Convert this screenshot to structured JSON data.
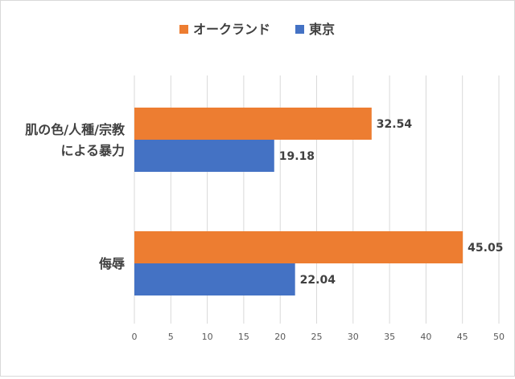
{
  "chart_data": {
    "type": "bar",
    "orientation": "horizontal",
    "categories": [
      [
        "肌の色/人種/宗教",
        "による暴力"
      ],
      [
        "侮辱"
      ]
    ],
    "series": [
      {
        "name": "オークランド",
        "values": [
          32.54,
          45.05
        ],
        "color": "#ed7d31"
      },
      {
        "name": "東京",
        "values": [
          19.18,
          22.04
        ],
        "color": "#4472c4"
      }
    ],
    "xlim": [
      0,
      50
    ],
    "xticks": [
      0,
      5,
      10,
      15,
      20,
      25,
      30,
      35,
      40,
      45,
      50
    ],
    "grid": true,
    "legend_position": "top-center",
    "data_labels": true
  }
}
